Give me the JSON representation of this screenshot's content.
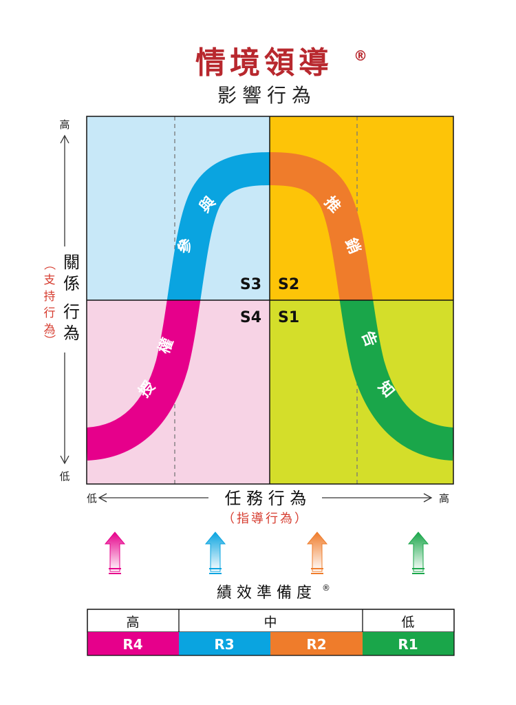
{
  "title": "情境領導",
  "title_mark": "®",
  "subtitle": "影響行為",
  "colors": {
    "title": "#b8282e",
    "s1_bg": "#d4de2a",
    "s2_bg": "#fdc408",
    "s3_bg": "#c8e8f8",
    "s4_bg": "#f7d3e5",
    "r1": "#1aa64a",
    "r2": "#ef7c2b",
    "r3": "#0aa4e0",
    "r4": "#e6008b",
    "paren_text": "#d63c2f"
  },
  "y_axis": {
    "high": "高",
    "low": "低",
    "label_chars": [
      "關",
      "係",
      "行",
      "為"
    ],
    "sub_chars": [
      "（",
      "支",
      "持",
      "行",
      "為",
      "）"
    ]
  },
  "x_axis": {
    "low": "低",
    "high": "高",
    "label": "任 務 行 為",
    "sub": "（指導行為）"
  },
  "quadrants": {
    "s1": "S1",
    "s2": "S2",
    "s3": "S3",
    "s4": "S4"
  },
  "curve_labels": {
    "participating": [
      "參",
      "與"
    ],
    "selling": [
      "推",
      "銷"
    ],
    "telling": [
      "告",
      "知"
    ],
    "delegating": [
      "授",
      "權"
    ]
  },
  "readiness": {
    "label": "績 效 準 備 度",
    "mark": "®",
    "headers": [
      "高",
      "中",
      "低"
    ],
    "levels": [
      "R4",
      "R3",
      "R2",
      "R1"
    ],
    "arrow_icons": [
      "up-arrow-icon",
      "up-arrow-icon",
      "up-arrow-icon",
      "up-arrow-icon"
    ]
  }
}
